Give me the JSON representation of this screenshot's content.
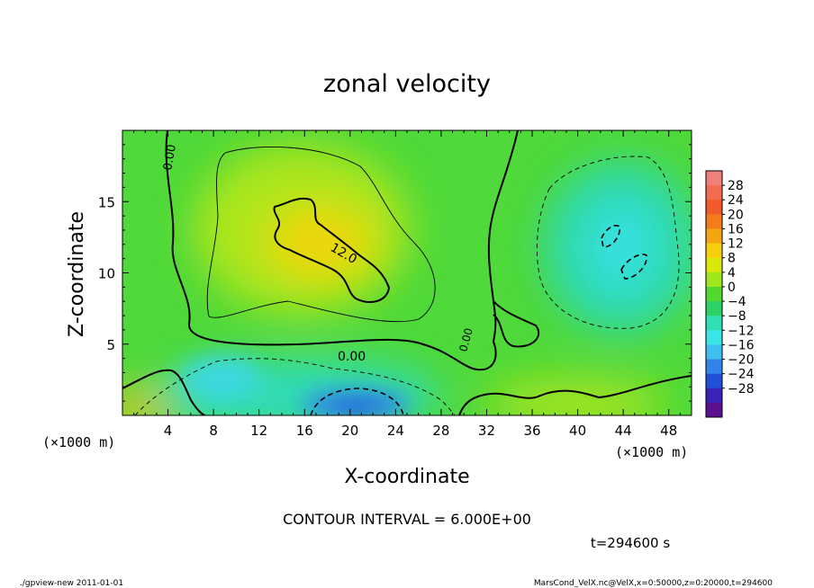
{
  "chart_data": {
    "type": "heatmap",
    "title": "zonal velocity",
    "xlabel": "X-coordinate",
    "ylabel": "Z-coordinate",
    "x_unit_label": "(×1000 m)",
    "z_unit_label": "(×1000 m)",
    "xlim": [
      0,
      50
    ],
    "ylim": [
      0,
      20
    ],
    "x_ticks": [
      4,
      8,
      12,
      16,
      20,
      24,
      28,
      32,
      36,
      40,
      44,
      48
    ],
    "y_ticks": [
      5,
      10,
      15
    ],
    "colorbar": {
      "labels": [
        "28",
        "24",
        "20",
        "16",
        "12",
        "8",
        "4",
        "0",
        "−4",
        "−8",
        "−12",
        "−16",
        "−20",
        "−24",
        "−28"
      ],
      "levels": [
        32,
        28,
        24,
        20,
        16,
        12,
        8,
        4,
        0,
        -4,
        -8,
        -12,
        -16,
        -20,
        -24,
        -28,
        -32
      ],
      "colors": [
        "#f0807c",
        "#f26d4f",
        "#f35a2a",
        "#f47c1c",
        "#f6a512",
        "#f7d00b",
        "#d9e806",
        "#9ee81c",
        "#52d92f",
        "#2dd266",
        "#2ee0b4",
        "#39e6e6",
        "#3fbfef",
        "#3384ea",
        "#2050d8",
        "#3a22b8",
        "#5a1090"
      ]
    },
    "contour_labels": [
      "0.00",
      "12.0",
      "0.00",
      "0.00"
    ],
    "contour_interval_text": "CONTOUR INTERVAL = 6.000E+00",
    "time_text": "t=294600 s",
    "features": [
      {
        "kind": "max",
        "x": 20,
        "z": 11.5,
        "value": 12
      },
      {
        "kind": "min",
        "x": 20,
        "z": 1,
        "value": -18
      },
      {
        "kind": "min",
        "x": 43,
        "z": 11.5,
        "value": -10
      }
    ]
  },
  "footer": {
    "left": "./gpview-new   2011-01-01",
    "right": "MarsCond_VelX.nc@VelX,x=0:50000,z=0:20000,t=294600"
  }
}
